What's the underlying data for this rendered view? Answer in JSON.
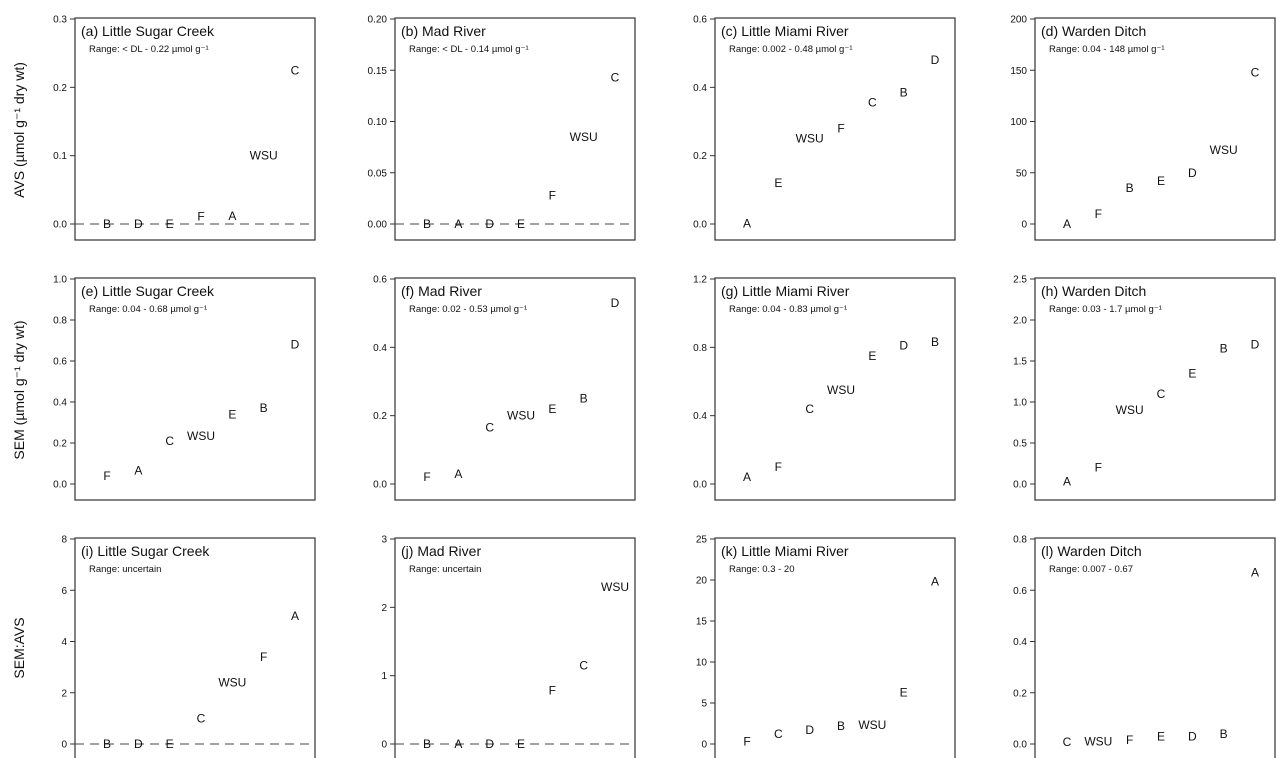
{
  "row_labels": [
    "AVS (µmol g⁻¹ dry wt)",
    "SEM (µmol g⁻¹ dry wt)",
    "SEM:AVS"
  ],
  "chart_data": [
    {
      "type": "scatter",
      "title": "(a) Little Sugar Creek",
      "range": "Range: < DL - 0.22 µmol g⁻¹",
      "ylim": [
        0,
        0.3
      ],
      "yticks": [
        "0.0",
        "0.1",
        "0.2",
        "0.3"
      ],
      "zero_line": true,
      "points": [
        {
          "label": "B",
          "x": 1,
          "y": 0
        },
        {
          "label": "D",
          "x": 2,
          "y": 0
        },
        {
          "label": "E",
          "x": 3,
          "y": 0
        },
        {
          "label": "F",
          "x": 4,
          "y": 0.011
        },
        {
          "label": "A",
          "x": 5,
          "y": 0.012
        },
        {
          "label": "WSU",
          "x": 6,
          "y": 0.1
        },
        {
          "label": "C",
          "x": 7,
          "y": 0.225
        }
      ]
    },
    {
      "type": "scatter",
      "title": "(b) Mad River",
      "range": "Range: < DL - 0.14 µmol g⁻¹",
      "ylim": [
        0,
        0.2
      ],
      "yticks": [
        "0.00",
        "0.05",
        "0.10",
        "0.15",
        "0.20"
      ],
      "zero_line": true,
      "points": [
        {
          "label": "B",
          "x": 1,
          "y": 0
        },
        {
          "label": "A",
          "x": 2,
          "y": 0
        },
        {
          "label": "D",
          "x": 3,
          "y": 0
        },
        {
          "label": "E",
          "x": 4,
          "y": 0
        },
        {
          "label": "F",
          "x": 5,
          "y": 0.028
        },
        {
          "label": "WSU",
          "x": 6,
          "y": 0.085
        },
        {
          "label": "C",
          "x": 7,
          "y": 0.143
        }
      ]
    },
    {
      "type": "scatter",
      "title": "(c) Little Miami River",
      "range": "Range: 0.002 - 0.48 µmol g⁻¹",
      "ylim": [
        0,
        0.6
      ],
      "yticks": [
        "0.0",
        "0.2",
        "0.4",
        "0.6"
      ],
      "points": [
        {
          "label": "A",
          "x": 1,
          "y": 0.002
        },
        {
          "label": "E",
          "x": 2,
          "y": 0.12
        },
        {
          "label": "WSU",
          "x": 3,
          "y": 0.25
        },
        {
          "label": "F",
          "x": 4,
          "y": 0.28
        },
        {
          "label": "C",
          "x": 5,
          "y": 0.355
        },
        {
          "label": "B",
          "x": 6,
          "y": 0.385
        },
        {
          "label": "D",
          "x": 7,
          "y": 0.48
        }
      ]
    },
    {
      "type": "scatter",
      "title": "(d) Warden Ditch",
      "range": "Range: 0.04 - 148 µmol g⁻¹",
      "ylim": [
        0,
        200
      ],
      "yticks": [
        "0",
        "50",
        "100",
        "150",
        "200"
      ],
      "points": [
        {
          "label": "A",
          "x": 1,
          "y": 0.04
        },
        {
          "label": "F",
          "x": 2,
          "y": 10
        },
        {
          "label": "B",
          "x": 3,
          "y": 35
        },
        {
          "label": "E",
          "x": 4,
          "y": 42
        },
        {
          "label": "D",
          "x": 5,
          "y": 50
        },
        {
          "label": "WSU",
          "x": 6,
          "y": 72
        },
        {
          "label": "C",
          "x": 7,
          "y": 148
        }
      ]
    },
    {
      "type": "scatter",
      "title": "(e) Little Sugar Creek",
      "range": "Range: 0.04 - 0.68 µmol g⁻¹",
      "ylim": [
        0,
        1.0
      ],
      "yticks": [
        "0.0",
        "0.2",
        "0.4",
        "0.6",
        "0.8",
        "1.0"
      ],
      "points": [
        {
          "label": "F",
          "x": 1,
          "y": 0.04
        },
        {
          "label": "A",
          "x": 2,
          "y": 0.065
        },
        {
          "label": "C",
          "x": 3,
          "y": 0.21
        },
        {
          "label": "WSU",
          "x": 4,
          "y": 0.235
        },
        {
          "label": "E",
          "x": 5,
          "y": 0.34
        },
        {
          "label": "B",
          "x": 6,
          "y": 0.37
        },
        {
          "label": "D",
          "x": 7,
          "y": 0.68
        }
      ]
    },
    {
      "type": "scatter",
      "title": "(f) Mad River",
      "range": "Range: 0.02 - 0.53 µmol g⁻¹",
      "ylim": [
        0,
        0.6
      ],
      "yticks": [
        "0.0",
        "0.2",
        "0.4",
        "0.6"
      ],
      "points": [
        {
          "label": "F",
          "x": 1,
          "y": 0.02
        },
        {
          "label": "A",
          "x": 2,
          "y": 0.03
        },
        {
          "label": "C",
          "x": 3,
          "y": 0.165
        },
        {
          "label": "WSU",
          "x": 4,
          "y": 0.2
        },
        {
          "label": "E",
          "x": 5,
          "y": 0.22
        },
        {
          "label": "B",
          "x": 6,
          "y": 0.25
        },
        {
          "label": "D",
          "x": 7,
          "y": 0.53
        }
      ]
    },
    {
      "type": "scatter",
      "title": "(g) Little Miami River",
      "range": "Range: 0.04 - 0.83 µmol g⁻¹",
      "ylim": [
        0,
        1.2
      ],
      "yticks": [
        "0.0",
        "0.4",
        "0.8",
        "1.2"
      ],
      "points": [
        {
          "label": "A",
          "x": 1,
          "y": 0.04
        },
        {
          "label": "F",
          "x": 2,
          "y": 0.1
        },
        {
          "label": "C",
          "x": 3,
          "y": 0.44
        },
        {
          "label": "WSU",
          "x": 4,
          "y": 0.55
        },
        {
          "label": "E",
          "x": 5,
          "y": 0.75
        },
        {
          "label": "D",
          "x": 6,
          "y": 0.81
        },
        {
          "label": "B",
          "x": 7,
          "y": 0.83
        }
      ]
    },
    {
      "type": "scatter",
      "title": "(h) Warden Ditch",
      "range": "Range: 0.03 - 1.7 µmol g⁻¹",
      "ylim": [
        0,
        2.5
      ],
      "yticks": [
        "0.0",
        "0.5",
        "1.0",
        "1.5",
        "2.0",
        "2.5"
      ],
      "points": [
        {
          "label": "A",
          "x": 1,
          "y": 0.03
        },
        {
          "label": "F",
          "x": 2,
          "y": 0.2
        },
        {
          "label": "WSU",
          "x": 3,
          "y": 0.9
        },
        {
          "label": "C",
          "x": 4,
          "y": 1.1
        },
        {
          "label": "E",
          "x": 5,
          "y": 1.35
        },
        {
          "label": "B",
          "x": 6,
          "y": 1.65
        },
        {
          "label": "D",
          "x": 7,
          "y": 1.7
        }
      ]
    },
    {
      "type": "scatter",
      "title": "(i) Little Sugar Creek",
      "range": "Range:  uncertain",
      "ylim": [
        0,
        8
      ],
      "yticks": [
        "0",
        "2",
        "4",
        "6",
        "8"
      ],
      "zero_line": true,
      "points": [
        {
          "label": "B",
          "x": 1,
          "y": 0
        },
        {
          "label": "D",
          "x": 2,
          "y": 0
        },
        {
          "label": "E",
          "x": 3,
          "y": 0
        },
        {
          "label": "C",
          "x": 4,
          "y": 1.0
        },
        {
          "label": "WSU",
          "x": 5,
          "y": 2.4
        },
        {
          "label": "F",
          "x": 6,
          "y": 3.4
        },
        {
          "label": "A",
          "x": 7,
          "y": 5.0
        }
      ]
    },
    {
      "type": "scatter",
      "title": "(j) Mad River",
      "range": "Range:  uncertain",
      "ylim": [
        0,
        3
      ],
      "yticks": [
        "0",
        "1",
        "2",
        "3"
      ],
      "zero_line": true,
      "points": [
        {
          "label": "B",
          "x": 1,
          "y": 0
        },
        {
          "label": "A",
          "x": 2,
          "y": 0
        },
        {
          "label": "D",
          "x": 3,
          "y": 0
        },
        {
          "label": "E",
          "x": 4,
          "y": 0
        },
        {
          "label": "F",
          "x": 5,
          "y": 0.78
        },
        {
          "label": "C",
          "x": 6,
          "y": 1.15
        },
        {
          "label": "WSU",
          "x": 7,
          "y": 2.3
        }
      ]
    },
    {
      "type": "scatter",
      "title": "(k) Little Miami River",
      "range": "Range: 0.3 - 20",
      "ylim": [
        0,
        25
      ],
      "yticks": [
        "0",
        "5",
        "10",
        "15",
        "20",
        "25"
      ],
      "points": [
        {
          "label": "F",
          "x": 1,
          "y": 0.3
        },
        {
          "label": "C",
          "x": 2,
          "y": 1.2
        },
        {
          "label": "D",
          "x": 3,
          "y": 1.7
        },
        {
          "label": "B",
          "x": 4,
          "y": 2.2
        },
        {
          "label": "WSU",
          "x": 5,
          "y": 2.3
        },
        {
          "label": "E",
          "x": 6,
          "y": 6.3
        },
        {
          "label": "A",
          "x": 7,
          "y": 19.8
        }
      ]
    },
    {
      "type": "scatter",
      "title": "(l) Warden Ditch",
      "range": "Range: 0.007 - 0.67",
      "ylim": [
        0,
        0.8
      ],
      "yticks": [
        "0.0",
        "0.2",
        "0.4",
        "0.6",
        "0.8"
      ],
      "points": [
        {
          "label": "C",
          "x": 1,
          "y": 0.007
        },
        {
          "label": "WSU",
          "x": 2,
          "y": 0.01
        },
        {
          "label": "F",
          "x": 3,
          "y": 0.015
        },
        {
          "label": "E",
          "x": 4,
          "y": 0.03
        },
        {
          "label": "D",
          "x": 5,
          "y": 0.03
        },
        {
          "label": "B",
          "x": 6,
          "y": 0.04
        },
        {
          "label": "A",
          "x": 7,
          "y": 0.67
        }
      ]
    }
  ]
}
